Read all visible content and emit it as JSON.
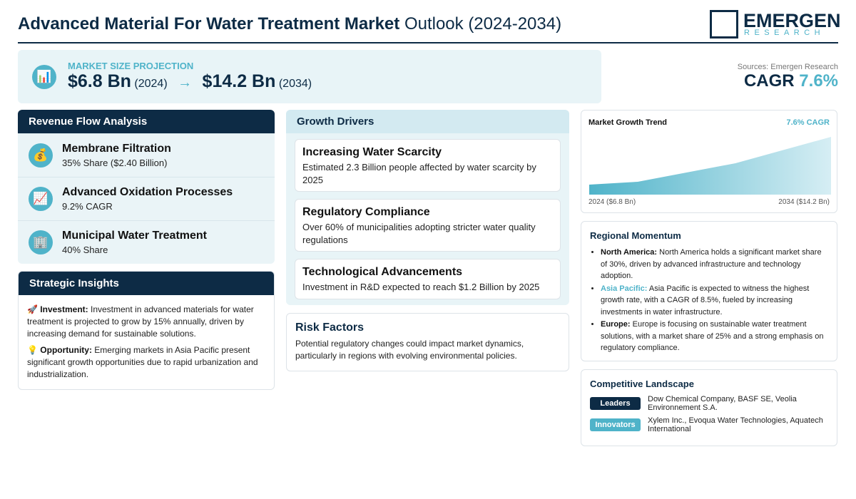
{
  "header": {
    "title_bold": "Advanced Material For Water Treatment Market",
    "title_rest": "Outlook (2024-2034)",
    "logo_top": "EMERGEN",
    "logo_bottom": "RESEARCH"
  },
  "projection": {
    "icon": "📊",
    "label": "MARKET SIZE PROJECTION",
    "start_value": "$6.8 Bn",
    "start_year": "(2024)",
    "arrow": "→",
    "end_value": "$14.2 Bn",
    "end_year": "(2034)"
  },
  "sources": "Sources: Emergen Research",
  "cagr": {
    "label": "CAGR",
    "value": "7.6%"
  },
  "revenue_flow": {
    "title": "Revenue Flow Analysis",
    "items": [
      {
        "icon": "💰",
        "name": "Membrane Filtration",
        "detail": "35% Share ($2.40 Billion)"
      },
      {
        "icon": "📈",
        "name": "Advanced Oxidation Processes",
        "detail": "9.2% CAGR"
      },
      {
        "icon": "🏢",
        "name": "Municipal Water Treatment",
        "detail": "40% Share"
      }
    ]
  },
  "strategic_insights": {
    "title": "Strategic Insights",
    "items": [
      {
        "icon": "🚀",
        "label": "Investment:",
        "text": "Investment in advanced materials for water treatment is projected to grow by 15% annually, driven by increasing demand for sustainable solutions."
      },
      {
        "icon": "💡",
        "label": "Opportunity:",
        "text": "Emerging markets in Asia Pacific present significant growth opportunities due to rapid urbanization and industrialization."
      }
    ]
  },
  "growth_drivers": {
    "title": "Growth Drivers",
    "items": [
      {
        "title": "Increasing Water Scarcity",
        "text": "Estimated 2.3 Billion people affected by water scarcity by 2025"
      },
      {
        "title": "Regulatory Compliance",
        "text": "Over 60% of municipalities adopting stricter water quality regulations"
      },
      {
        "title": "Technological Advancements",
        "text": "Investment in R&D expected to reach $1.2 Billion by 2025"
      }
    ]
  },
  "risk_factors": {
    "title": "Risk Factors",
    "text": "Potential regulatory changes could impact market dynamics, particularly in regions with evolving environmental policies."
  },
  "market_trend": {
    "title": "Market Growth Trend",
    "badge": "7.6% CAGR",
    "start_label": "2024 ($6.8 Bn)",
    "end_label": "2034 ($14.2 Bn)"
  },
  "regional_momentum": {
    "title": "Regional Momentum",
    "items": [
      {
        "region": "North America:",
        "text": "North America holds a significant market share of 30%, driven by advanced infrastructure and technology adoption."
      },
      {
        "region": "Asia Pacific:",
        "text": "Asia Pacific is expected to witness the highest growth rate, with a CAGR of 8.5%, fueled by increasing investments in water infrastructure."
      },
      {
        "region": "Europe:",
        "text": "Europe is focusing on sustainable water treatment solutions, with a market share of 25% and a strong emphasis on regulatory compliance."
      }
    ]
  },
  "competitive_landscape": {
    "title": "Competitive Landscape",
    "rows": [
      {
        "tag": "Leaders",
        "companies": "Dow Chemical Company, BASF SE, Veolia Environnement S.A."
      },
      {
        "tag": "Innovators",
        "companies": "Xylem Inc., Evoqua Water Technologies, Aquatech International"
      }
    ]
  }
}
